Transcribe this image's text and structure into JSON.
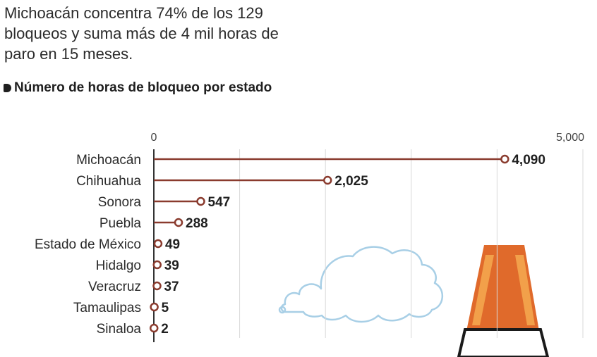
{
  "headline": "Michoacán concentra 74% de los 129 bloqueos y suma más de 4 mil horas de paro en 15 meses.",
  "chart_title": "Número de horas de bloqueo por estado",
  "colors": {
    "line": "#8a3b2e",
    "grid": "#d9d9d9",
    "axis": "#333333",
    "cloud": "#a8cfe6",
    "cone_orange": "#e06a2b",
    "cone_light": "#f2a04a"
  },
  "icons": [
    "cloud-illustration",
    "traffic-cone-illustration"
  ],
  "chart_data": {
    "type": "bar",
    "orientation": "horizontal",
    "style": "lollipop",
    "title": "Número de horas de bloqueo por estado",
    "xlabel": "",
    "ylabel": "",
    "xlim": [
      0,
      5000
    ],
    "tick_labels": [
      "0",
      "5,000"
    ],
    "grid": true,
    "categories": [
      "Michoacán",
      "Chihuahua",
      "Sonora",
      "Puebla",
      "Estado de México",
      "Hidalgo",
      "Veracruz",
      "Tamaulipas",
      "Sinaloa"
    ],
    "values": [
      4090,
      2025,
      547,
      288,
      49,
      39,
      37,
      5,
      2
    ],
    "value_labels": [
      "4,090",
      "2,025",
      "547",
      "288",
      "49",
      "39",
      "37",
      "5",
      "2"
    ]
  }
}
